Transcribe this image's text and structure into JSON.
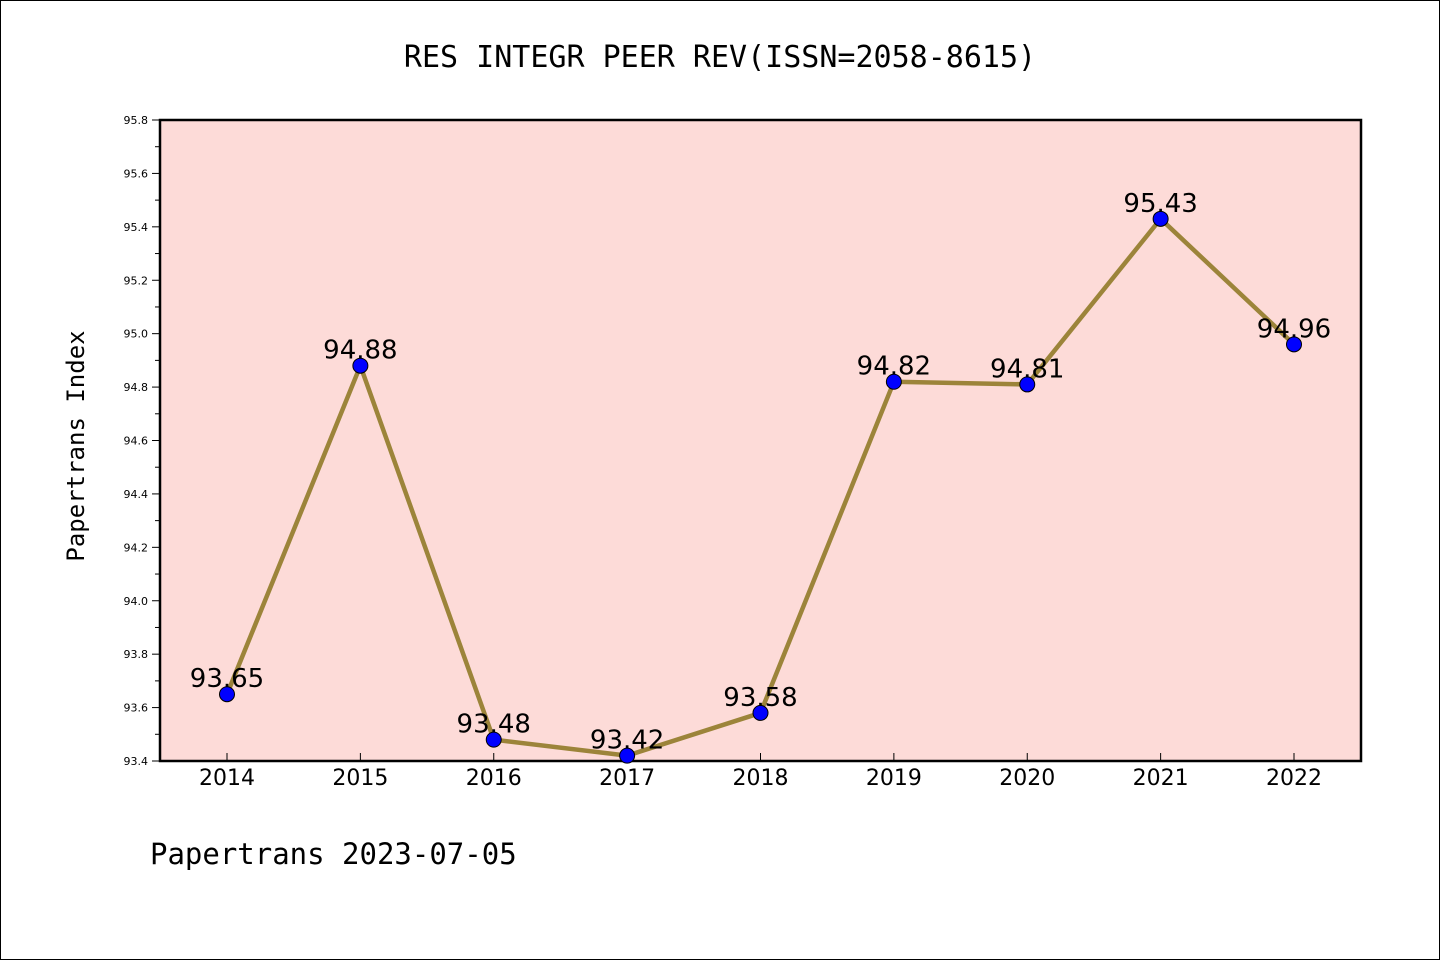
{
  "chart_data": {
    "type": "line",
    "title": "RES INTEGR PEER REV(ISSN=2058-8615)",
    "xlabel": "",
    "ylabel": "Papertrans Index",
    "footer": "Papertrans 2023-07-05",
    "categories": [
      "2014",
      "2015",
      "2016",
      "2017",
      "2018",
      "2019",
      "2020",
      "2021",
      "2022"
    ],
    "series": [
      {
        "values": [
          93.65,
          94.88,
          93.48,
          93.42,
          93.58,
          94.82,
          94.81,
          95.43,
          94.96
        ],
        "labels": [
          "93.65",
          "94.88",
          "93.48",
          "93.42",
          "93.58",
          "94.82",
          "94.81",
          "95.43",
          "94.96"
        ]
      }
    ],
    "ylim": [
      93.4,
      95.8
    ],
    "yticks": [
      "93.4",
      "93.6",
      "93.8",
      "94.0",
      "94.2",
      "94.4",
      "94.6",
      "94.8",
      "95.0",
      "95.2",
      "95.4",
      "95.6",
      "95.8"
    ],
    "grid": false,
    "colors": {
      "plot_background": "#fddbd8",
      "line": "#9c843a",
      "marker": "#0000ff"
    }
  }
}
